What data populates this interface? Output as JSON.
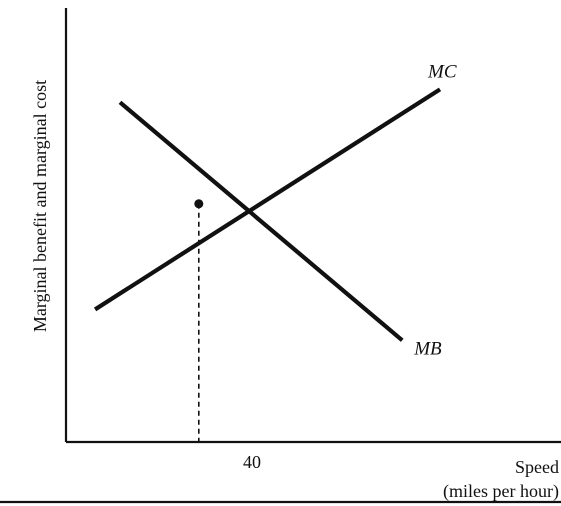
{
  "chart_data": {
    "type": "line",
    "title": "",
    "xlabel_line1": "Speed",
    "xlabel_line2": "(miles per hour)",
    "ylabel": "Marginal benefit and marginal cost",
    "x_ticks": [
      "40"
    ],
    "xlim": [
      0,
      100
    ],
    "ylim": [
      0,
      100
    ],
    "grid": false,
    "series": [
      {
        "name": "MC",
        "x": [
          14.2,
          100
        ],
        "y": [
          27.8,
          90.5
        ]
      },
      {
        "name": "MB",
        "x": [
          20.4,
          90.6
        ],
        "y": [
          86.8,
          19.0
        ]
      }
    ],
    "intersection": {
      "x": 40,
      "y": 57.9
    },
    "guide_to_axis": true
  }
}
